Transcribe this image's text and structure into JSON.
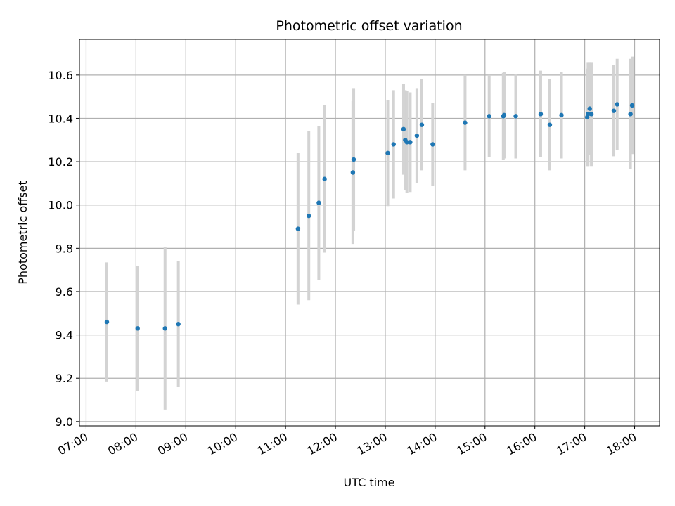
{
  "chart_data": {
    "type": "scatter",
    "title": "Photometric offset variation",
    "xlabel": "UTC time",
    "ylabel": "Photometric offset",
    "xlim": [
      "06:52",
      "18:30"
    ],
    "ylim": [
      8.98,
      10.765
    ],
    "x_ticks": [
      "07:00",
      "08:00",
      "09:00",
      "10:00",
      "11:00",
      "12:00",
      "13:00",
      "14:00",
      "15:00",
      "16:00",
      "17:00",
      "18:00"
    ],
    "y_ticks": [
      9.0,
      9.2,
      9.4,
      9.6,
      9.8,
      10.0,
      10.2,
      10.4,
      10.6
    ],
    "y_tick_labels": [
      "9.0",
      "9.2",
      "9.4",
      "9.6",
      "9.8",
      "10.0",
      "10.2",
      "10.4",
      "10.6"
    ],
    "grid": true,
    "point_color": "#1f77b4",
    "errorbar_color": "#d3d3d3",
    "points": [
      {
        "x": "07:25",
        "y": 9.46,
        "yerr": 0.275
      },
      {
        "x": "08:02",
        "y": 9.43,
        "yerr": 0.29
      },
      {
        "x": "08:35",
        "y": 9.43,
        "yerr": 0.375
      },
      {
        "x": "08:51",
        "y": 9.45,
        "yerr": 0.29
      },
      {
        "x": "11:15",
        "y": 9.89,
        "yerr": 0.35
      },
      {
        "x": "11:28",
        "y": 9.95,
        "yerr": 0.39
      },
      {
        "x": "11:40",
        "y": 10.01,
        "yerr": 0.355
      },
      {
        "x": "11:47",
        "y": 10.12,
        "yerr": 0.34
      },
      {
        "x": "12:21",
        "y": 10.15,
        "yerr": 0.33
      },
      {
        "x": "12:22",
        "y": 10.21,
        "yerr": 0.33
      },
      {
        "x": "13:03",
        "y": 10.24,
        "yerr": 0.245
      },
      {
        "x": "13:10",
        "y": 10.28,
        "yerr": 0.25
      },
      {
        "x": "13:22",
        "y": 10.35,
        "yerr": 0.21
      },
      {
        "x": "13:24",
        "y": 10.3,
        "yerr": 0.23
      },
      {
        "x": "13:26",
        "y": 10.29,
        "yerr": 0.235
      },
      {
        "x": "13:30",
        "y": 10.29,
        "yerr": 0.23
      },
      {
        "x": "13:38",
        "y": 10.32,
        "yerr": 0.22
      },
      {
        "x": "13:44",
        "y": 10.37,
        "yerr": 0.21
      },
      {
        "x": "13:57",
        "y": 10.28,
        "yerr": 0.19
      },
      {
        "x": "14:36",
        "y": 10.38,
        "yerr": 0.22
      },
      {
        "x": "15:05",
        "y": 10.41,
        "yerr": 0.19
      },
      {
        "x": "15:22",
        "y": 10.41,
        "yerr": 0.2
      },
      {
        "x": "15:23",
        "y": 10.415,
        "yerr": 0.2
      },
      {
        "x": "15:37",
        "y": 10.41,
        "yerr": 0.195
      },
      {
        "x": "16:07",
        "y": 10.42,
        "yerr": 0.2
      },
      {
        "x": "16:18",
        "y": 10.37,
        "yerr": 0.21
      },
      {
        "x": "16:32",
        "y": 10.415,
        "yerr": 0.2
      },
      {
        "x": "17:03",
        "y": 10.405,
        "yerr": 0.225
      },
      {
        "x": "17:04",
        "y": 10.42,
        "yerr": 0.24
      },
      {
        "x": "17:06",
        "y": 10.445,
        "yerr": 0.215
      },
      {
        "x": "17:08",
        "y": 10.42,
        "yerr": 0.24
      },
      {
        "x": "17:35",
        "y": 10.435,
        "yerr": 0.21
      },
      {
        "x": "17:39",
        "y": 10.465,
        "yerr": 0.21
      },
      {
        "x": "17:55",
        "y": 10.42,
        "yerr": 0.255
      },
      {
        "x": "17:57",
        "y": 10.46,
        "yerr": 0.225
      }
    ]
  }
}
